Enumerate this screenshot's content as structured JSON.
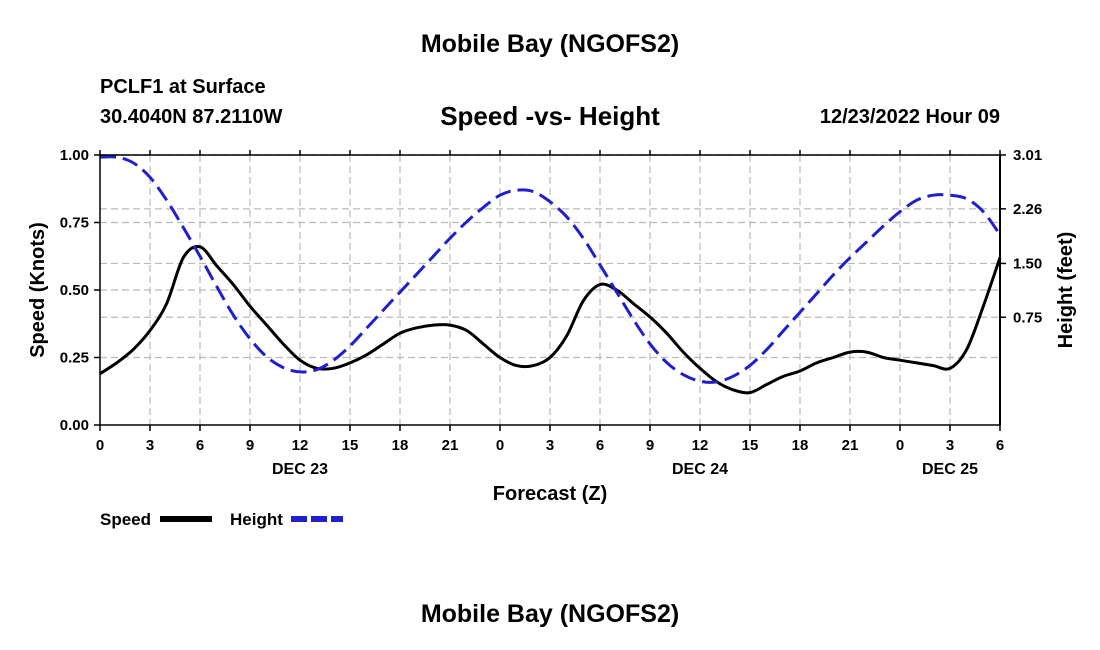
{
  "header": {
    "title": "Mobile Bay (NGOFS2)",
    "station": "PCLF1 at Surface",
    "coordinates": "30.4040N  87.2110W",
    "subtitle": "Speed -vs- Height",
    "datetime": "12/23/2022 Hour 09"
  },
  "footer": {
    "title": "Mobile Bay (NGOFS2)"
  },
  "chart_data": {
    "type": "line",
    "title": "Speed -vs- Height",
    "xlabel": "Forecast (Z)",
    "ylabel": "Speed (Knots)",
    "y2label": "Height (feet)",
    "grid": true,
    "x_tick_labels": [
      "0",
      "3",
      "6",
      "9",
      "12",
      "15",
      "18",
      "21",
      "0",
      "3",
      "6",
      "9",
      "12",
      "15",
      "18",
      "21",
      "0",
      "3",
      "6"
    ],
    "x_hours": [
      0,
      3,
      6,
      9,
      12,
      15,
      18,
      21,
      24,
      27,
      30,
      33,
      36,
      39,
      42,
      45,
      48,
      51,
      54
    ],
    "day_labels": [
      {
        "label": "DEC 23",
        "hour": 12
      },
      {
        "label": "DEC 24",
        "hour": 36
      },
      {
        "label": "DEC 25",
        "hour": 51
      }
    ],
    "xlim": [
      0,
      54
    ],
    "ylim": [
      0,
      1.0
    ],
    "y_ticks": [
      "0.00",
      "0.25",
      "0.50",
      "0.75",
      "1.00"
    ],
    "y2lim": [
      -0.75,
      3.01
    ],
    "y2_ticks": [
      "0.75",
      "1.50",
      "2.26",
      "3.01"
    ],
    "legend_position": "bottom-left",
    "series": [
      {
        "name": "Speed",
        "axis": "left",
        "color": "#000000",
        "style": "solid",
        "x": [
          0,
          1,
          2,
          3,
          4,
          5,
          6,
          7,
          8,
          9,
          10,
          11,
          12,
          13,
          14,
          15,
          16,
          17,
          18,
          19,
          20,
          21,
          22,
          23,
          24,
          25,
          26,
          27,
          28,
          29,
          30,
          31,
          32,
          33,
          34,
          35,
          36,
          37,
          38,
          39,
          40,
          41,
          42,
          43,
          44,
          45,
          46,
          47,
          48,
          49,
          50,
          51,
          52,
          53,
          54
        ],
        "y": [
          0.19,
          0.23,
          0.28,
          0.35,
          0.45,
          0.62,
          0.66,
          0.59,
          0.52,
          0.44,
          0.37,
          0.3,
          0.24,
          0.21,
          0.21,
          0.23,
          0.26,
          0.3,
          0.34,
          0.36,
          0.37,
          0.37,
          0.35,
          0.3,
          0.25,
          0.22,
          0.22,
          0.25,
          0.33,
          0.46,
          0.52,
          0.5,
          0.45,
          0.4,
          0.34,
          0.27,
          0.21,
          0.16,
          0.13,
          0.12,
          0.15,
          0.18,
          0.2,
          0.23,
          0.25,
          0.27,
          0.27,
          0.25,
          0.24,
          0.23,
          0.22,
          0.21,
          0.28,
          0.44,
          0.62
        ]
      },
      {
        "name": "Height",
        "axis": "right",
        "color": "#1f1fcc",
        "style": "dashed",
        "x": [
          0,
          1,
          2,
          3,
          4,
          5,
          6,
          7,
          8,
          9,
          10,
          11,
          12,
          13,
          14,
          15,
          16,
          17,
          18,
          19,
          20,
          21,
          22,
          23,
          24,
          25,
          26,
          27,
          28,
          29,
          30,
          31,
          32,
          33,
          34,
          35,
          36,
          37,
          38,
          39,
          40,
          41,
          42,
          43,
          44,
          45,
          46,
          47,
          48,
          49,
          50,
          51,
          52,
          53,
          54
        ],
        "y": [
          2.98,
          2.98,
          2.9,
          2.7,
          2.38,
          2.0,
          1.6,
          1.18,
          0.78,
          0.45,
          0.2,
          0.05,
          -0.01,
          0.02,
          0.15,
          0.35,
          0.6,
          0.85,
          1.1,
          1.35,
          1.6,
          1.85,
          2.08,
          2.28,
          2.45,
          2.52,
          2.5,
          2.36,
          2.15,
          1.85,
          1.48,
          1.1,
          0.72,
          0.38,
          0.12,
          -0.05,
          -0.14,
          -0.15,
          -0.07,
          0.08,
          0.3,
          0.56,
          0.82,
          1.08,
          1.34,
          1.58,
          1.8,
          2.02,
          2.22,
          2.38,
          2.45,
          2.45,
          2.4,
          2.22,
          1.9
        ]
      }
    ]
  }
}
